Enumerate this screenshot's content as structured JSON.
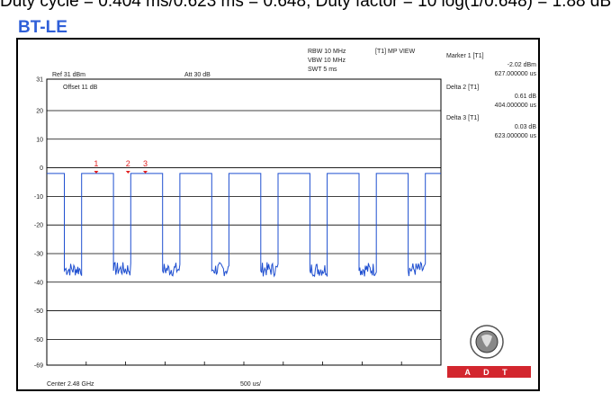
{
  "caption": "Duty cycle = 0.404 ms/0.623 ms = 0.648, Duty factor = 10 log(1/0.648) = 1.88 dB",
  "section_label": "BT-LE",
  "instrument": {
    "rbw": "RBW 10 MHz",
    "vbw": "VBW 10 MHz",
    "swt": "SWT 5 ms",
    "mode": "[T1] MP VIEW",
    "ref": "Ref 31 dBm",
    "att": "Att  30 dB",
    "offset": "Offset 11 dB",
    "center": "Center 2.48 GHz",
    "span": "500 us/"
  },
  "markers_panel": [
    {
      "name": "Marker 1 [T1]",
      "value": "-2.02 dBm",
      "time": "627.000000 us"
    },
    {
      "name": "Delta 2 [T1]",
      "value": "0.61 dB",
      "time": "404.000000 us"
    },
    {
      "name": "Delta 3 [T1]",
      "value": "0.03 dB",
      "time": "623.000000 us"
    }
  ],
  "marker_labels": [
    "1",
    "2",
    "3"
  ],
  "logo": {
    "badge_text": "A D T"
  },
  "chart_data": {
    "type": "line",
    "ylim": [
      -69,
      31
    ],
    "yticks": [
      31,
      20,
      10,
      0,
      -10,
      -20,
      -30,
      -40,
      -50,
      -60,
      -69
    ],
    "xlim": [
      0,
      5000
    ],
    "x_unit": "us",
    "pulse_high_dbm": -2,
    "pulse_low_dbm": -36,
    "pulse_on_us": 404,
    "period_us": 623,
    "first_edge_us": 223,
    "marker_x_us": [
      627,
      1031,
      1250
    ]
  },
  "colors": {
    "trace": "#1f4fd0",
    "marker": "#e02020",
    "grid": "#000000",
    "badge": "#d3262e"
  }
}
